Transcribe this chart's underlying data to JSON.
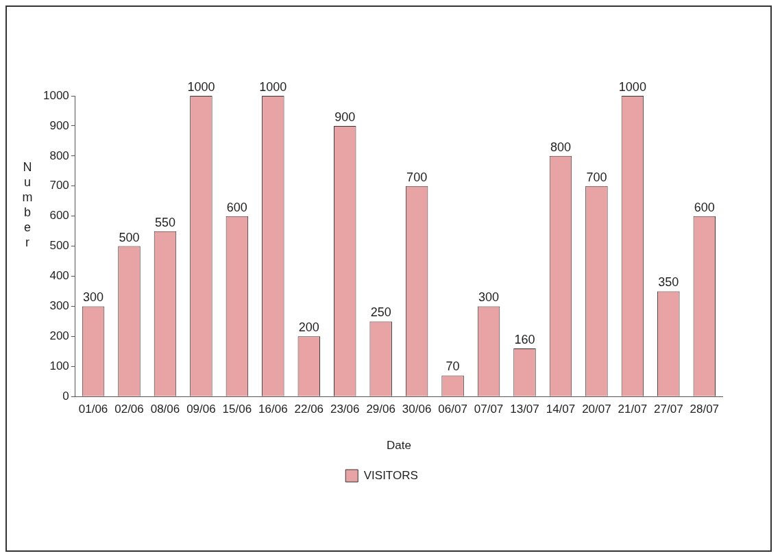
{
  "chart_data": {
    "type": "bar",
    "categories": [
      "01/06",
      "02/06",
      "08/06",
      "09/06",
      "15/06",
      "16/06",
      "22/06",
      "23/06",
      "29/06",
      "30/06",
      "06/07",
      "07/07",
      "13/07",
      "14/07",
      "20/07",
      "21/07",
      "27/07",
      "28/07"
    ],
    "series": [
      {
        "name": "VISITORS",
        "color": "#e8a4a4",
        "values": [
          300,
          500,
          550,
          1000,
          600,
          1000,
          200,
          900,
          250,
          700,
          70,
          300,
          160,
          800,
          700,
          1000,
          350,
          600
        ]
      }
    ],
    "xlabel": "Date",
    "ylabel": "Number",
    "ylim": [
      0,
      1000
    ],
    "yticks": [
      0,
      100,
      200,
      300,
      400,
      500,
      600,
      700,
      800,
      900,
      1000
    ],
    "grid": false,
    "legend": "bottom",
    "data_labels": true
  }
}
